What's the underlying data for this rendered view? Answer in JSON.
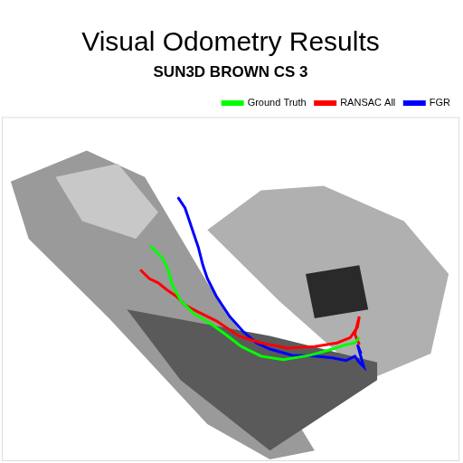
{
  "chart_data": {
    "type": "line",
    "title": "Visual Odometry Results",
    "subtitle": "SUN3D BROWN CS 3",
    "xlim": [
      0,
      512
    ],
    "ylim": [
      0,
      390
    ],
    "tick_labels": false,
    "grid": false,
    "legend": "upper right",
    "series": [
      {
        "name": "Ground Truth",
        "color": "#00ff00",
        "x": [
          166,
          180,
          186,
          190,
          200,
          215,
          232,
          250,
          268,
          290,
          315,
          345,
          370,
          385,
          395,
          400
        ],
        "values": [
          244,
          230,
          217,
          202,
          182,
          167,
          157,
          144,
          130,
          119,
          115,
          120,
          127,
          132,
          134,
          140
        ]
      },
      {
        "name": "RANSAC All",
        "color": "#ff0000",
        "x": [
          155,
          165,
          175,
          185,
          195,
          205,
          220,
          240,
          265,
          290,
          320,
          350,
          375,
          390,
          398,
          400,
          395,
          400
        ],
        "values": [
          217,
          207,
          202,
          194,
          187,
          177,
          169,
          159,
          142,
          134,
          128,
          130,
          134,
          140,
          152,
          164,
          144,
          132
        ]
      },
      {
        "name": "FGR",
        "color": "#0000ff",
        "x": [
          197,
          205,
          210,
          215,
          220,
          225,
          230,
          240,
          255,
          270,
          285,
          300,
          325,
          350,
          370,
          385,
          395,
          400,
          405,
          398,
          402
        ],
        "values": [
          299,
          287,
          272,
          257,
          242,
          222,
          207,
          187,
          164,
          147,
          134,
          127,
          120,
          119,
          117,
          114,
          119,
          112,
          107,
          132,
          122
        ]
      }
    ]
  }
}
